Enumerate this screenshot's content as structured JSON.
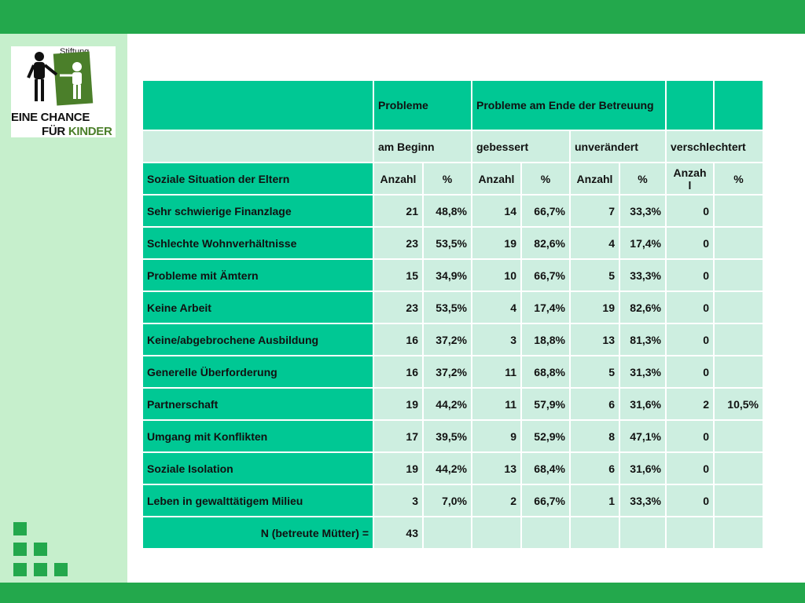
{
  "logo": {
    "stiftung": "Stiftung",
    "line1": "EINE CHANCE",
    "line2a": "FÜR",
    "line2b": "KINDER"
  },
  "table": {
    "header1": [
      "",
      "Probleme",
      "Probleme am Ende der Betreuung",
      "",
      ""
    ],
    "header2": [
      "",
      "am Beginn",
      "gebessert",
      "unverändert",
      "verschlechtert"
    ],
    "header3": {
      "title": "Soziale Situation der Eltern",
      "cols": [
        "Anzahl",
        "%",
        "Anzahl",
        "%",
        "Anzahl",
        "%",
        "Anzah l",
        "%"
      ]
    },
    "rows": [
      {
        "label": "Sehr schwierige Finanzlage",
        "values": [
          "21",
          "48,8%",
          "14",
          "66,7%",
          "7",
          "33,3%",
          "0",
          ""
        ]
      },
      {
        "label": "Schlechte Wohnverhältnisse",
        "values": [
          "23",
          "53,5%",
          "19",
          "82,6%",
          "4",
          "17,4%",
          "0",
          ""
        ]
      },
      {
        "label": "Probleme mit Ämtern",
        "values": [
          "15",
          "34,9%",
          "10",
          "66,7%",
          "5",
          "33,3%",
          "0",
          ""
        ]
      },
      {
        "label": "Keine Arbeit",
        "values": [
          "23",
          "53,5%",
          "4",
          "17,4%",
          "19",
          "82,6%",
          "0",
          ""
        ]
      },
      {
        "label": "Keine/abgebrochene Ausbildung",
        "values": [
          "16",
          "37,2%",
          "3",
          "18,8%",
          "13",
          "81,3%",
          "0",
          ""
        ]
      },
      {
        "label": "Generelle Überforderung",
        "values": [
          "16",
          "37,2%",
          "11",
          "68,8%",
          "5",
          "31,3%",
          "0",
          ""
        ]
      },
      {
        "label": "Partnerschaft",
        "values": [
          "19",
          "44,2%",
          "11",
          "57,9%",
          "6",
          "31,6%",
          "2",
          "10,5%"
        ]
      },
      {
        "label": "Umgang mit Konflikten",
        "values": [
          "17",
          "39,5%",
          "9",
          "52,9%",
          "8",
          "47,1%",
          "0",
          ""
        ]
      },
      {
        "label": "Soziale Isolation",
        "values": [
          "19",
          "44,2%",
          "13",
          "68,4%",
          "6",
          "31,6%",
          "0",
          ""
        ]
      },
      {
        "label": "Leben in gewalttätigem Milieu",
        "values": [
          "3",
          "7,0%",
          "2",
          "66,7%",
          "1",
          "33,3%",
          "0",
          ""
        ]
      }
    ],
    "footer": {
      "label": "N (betreute Mütter) =",
      "value": "43"
    }
  },
  "colors": {
    "brand_green": "#23a84c",
    "table_green": "#00c894",
    "table_light": "#cdeee0",
    "panel": "#c6efcc"
  }
}
